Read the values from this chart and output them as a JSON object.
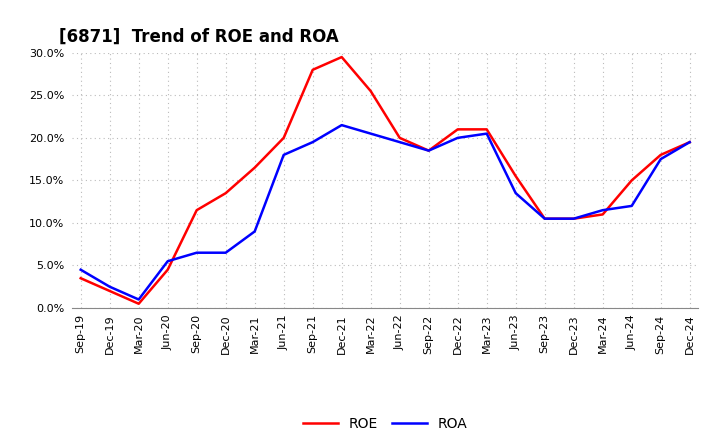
{
  "title": "[6871]  Trend of ROE and ROA",
  "labels": [
    "Sep-19",
    "Dec-19",
    "Mar-20",
    "Jun-20",
    "Sep-20",
    "Dec-20",
    "Mar-21",
    "Jun-21",
    "Sep-21",
    "Dec-21",
    "Mar-22",
    "Jun-22",
    "Sep-22",
    "Dec-22",
    "Mar-23",
    "Jun-23",
    "Sep-23",
    "Dec-23",
    "Mar-24",
    "Jun-24",
    "Sep-24",
    "Dec-24"
  ],
  "ROE": [
    3.5,
    2.0,
    0.5,
    4.5,
    11.5,
    13.5,
    16.5,
    20.0,
    28.0,
    29.5,
    25.5,
    20.0,
    18.5,
    21.0,
    21.0,
    15.5,
    10.5,
    10.5,
    11.0,
    15.0,
    18.0,
    19.5
  ],
  "ROA": [
    4.5,
    2.5,
    1.0,
    5.5,
    6.5,
    6.5,
    9.0,
    18.0,
    19.5,
    21.5,
    20.5,
    19.5,
    18.5,
    20.0,
    20.5,
    13.5,
    10.5,
    10.5,
    11.5,
    12.0,
    17.5,
    19.5
  ],
  "ROE_color": "#ff0000",
  "ROA_color": "#0000ff",
  "ylim": [
    0,
    30
  ],
  "yticks": [
    0,
    5,
    10,
    15,
    20,
    25,
    30
  ],
  "background_color": "#ffffff",
  "grid_color": "#bbbbbb",
  "title_fontsize": 12,
  "tick_fontsize": 8,
  "legend_fontsize": 10,
  "line_width": 1.8
}
